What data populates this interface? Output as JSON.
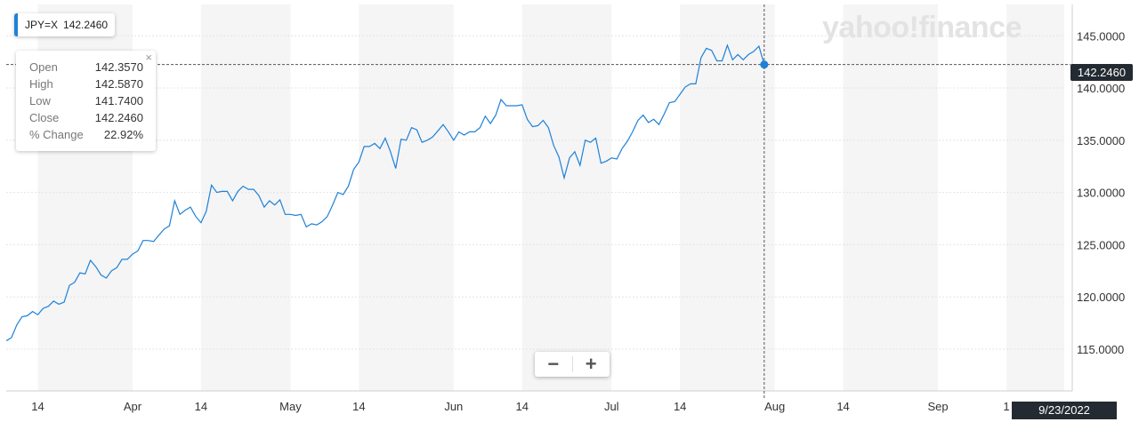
{
  "ticker": {
    "symbol": "JPY=X",
    "price": "142.2460",
    "accent": "#1d81d9"
  },
  "watermark": "yahoo!finance",
  "tooltip": {
    "rows": [
      {
        "label": "Open",
        "value": "142.3570"
      },
      {
        "label": "High",
        "value": "142.5870"
      },
      {
        "label": "Low",
        "value": "141.7400"
      },
      {
        "label": "Close",
        "value": "142.2460"
      },
      {
        "label": "% Change",
        "value": "22.92%"
      }
    ],
    "close_icon": "×"
  },
  "zoom": {
    "minus_icon": "minus-icon",
    "plus_icon": "plus-icon"
  },
  "crosshair": {
    "price_label": "142.2460",
    "date_label": "9/23/2022"
  },
  "chart_data": {
    "type": "line",
    "title": "",
    "xlabel": "",
    "ylabel": "",
    "ylim": [
      111,
      148
    ],
    "y_ticks": [
      115,
      120,
      125,
      130,
      135,
      140,
      145
    ],
    "y_tick_labels": [
      "115.0000",
      "120.0000",
      "125.0000",
      "130.0000",
      "135.0000",
      "140.0000",
      "145.0000"
    ],
    "x_range": [
      "2022-03-08",
      "2022-09-25"
    ],
    "x_ticks": [
      {
        "date": "2022-03-14",
        "label": "14"
      },
      {
        "date": "2022-04-01",
        "label": "Apr"
      },
      {
        "date": "2022-04-14",
        "label": "14"
      },
      {
        "date": "2022-05-01",
        "label": "May"
      },
      {
        "date": "2022-05-14",
        "label": "14"
      },
      {
        "date": "2022-06-01",
        "label": "Jun"
      },
      {
        "date": "2022-06-14",
        "label": "14"
      },
      {
        "date": "2022-07-01",
        "label": "Jul"
      },
      {
        "date": "2022-07-14",
        "label": "14"
      },
      {
        "date": "2022-08-01",
        "label": "Aug"
      },
      {
        "date": "2022-08-14",
        "label": "14"
      },
      {
        "date": "2022-09-01",
        "label": "Sep"
      },
      {
        "date": "2022-09-14",
        "label": "1"
      }
    ],
    "grid": true,
    "line_color": "#1d81d9",
    "current_value": 142.246,
    "series": [
      {
        "values": [
          [
            "2022-03-08",
            115.8
          ],
          [
            "2022-03-09",
            116.1
          ],
          [
            "2022-03-10",
            117.3
          ],
          [
            "2022-03-11",
            118.1
          ],
          [
            "2022-03-12",
            118.2
          ],
          [
            "2022-03-13",
            118.6
          ],
          [
            "2022-03-14",
            118.3
          ],
          [
            "2022-03-15",
            118.9
          ],
          [
            "2022-03-16",
            119.1
          ],
          [
            "2022-03-17",
            119.6
          ],
          [
            "2022-03-18",
            119.3
          ],
          [
            "2022-03-19",
            119.5
          ],
          [
            "2022-03-20",
            121.1
          ],
          [
            "2022-03-21",
            121.4
          ],
          [
            "2022-03-22",
            122.3
          ],
          [
            "2022-03-23",
            122.2
          ],
          [
            "2022-03-24",
            123.5
          ],
          [
            "2022-03-25",
            122.9
          ],
          [
            "2022-03-26",
            122.1
          ],
          [
            "2022-03-27",
            121.8
          ],
          [
            "2022-03-28",
            122.5
          ],
          [
            "2022-03-29",
            122.8
          ],
          [
            "2022-03-30",
            123.6
          ],
          [
            "2022-03-31",
            123.6
          ],
          [
            "2022-04-01",
            124.1
          ],
          [
            "2022-04-02",
            124.4
          ],
          [
            "2022-04-03",
            125.4
          ],
          [
            "2022-04-04",
            125.4
          ],
          [
            "2022-04-05",
            125.3
          ],
          [
            "2022-04-06",
            125.9
          ],
          [
            "2022-04-07",
            126.5
          ],
          [
            "2022-04-08",
            126.8
          ],
          [
            "2022-04-09",
            129.2
          ],
          [
            "2022-04-10",
            127.9
          ],
          [
            "2022-04-11",
            128.3
          ],
          [
            "2022-04-12",
            128.6
          ],
          [
            "2022-04-13",
            127.7
          ],
          [
            "2022-04-14",
            127.1
          ],
          [
            "2022-04-15",
            128.2
          ],
          [
            "2022-04-16",
            130.7
          ],
          [
            "2022-04-17",
            130.0
          ],
          [
            "2022-04-18",
            130.1
          ],
          [
            "2022-04-19",
            130.1
          ],
          [
            "2022-04-20",
            129.2
          ],
          [
            "2022-04-21",
            130.1
          ],
          [
            "2022-04-22",
            130.6
          ],
          [
            "2022-04-23",
            130.3
          ],
          [
            "2022-04-24",
            130.3
          ],
          [
            "2022-04-25",
            129.7
          ],
          [
            "2022-04-26",
            128.6
          ],
          [
            "2022-04-27",
            129.2
          ],
          [
            "2022-04-28",
            128.8
          ],
          [
            "2022-04-29",
            129.3
          ],
          [
            "2022-04-30",
            127.9
          ],
          [
            "2022-05-01",
            127.9
          ],
          [
            "2022-05-02",
            127.8
          ],
          [
            "2022-05-03",
            127.9
          ],
          [
            "2022-05-04",
            126.7
          ],
          [
            "2022-05-05",
            127.0
          ],
          [
            "2022-05-06",
            126.9
          ],
          [
            "2022-05-07",
            127.2
          ],
          [
            "2022-05-08",
            127.7
          ],
          [
            "2022-05-09",
            128.8
          ],
          [
            "2022-05-10",
            130.0
          ],
          [
            "2022-05-11",
            129.8
          ],
          [
            "2022-05-12",
            130.6
          ],
          [
            "2022-05-13",
            132.2
          ],
          [
            "2022-05-14",
            132.9
          ],
          [
            "2022-05-15",
            134.4
          ],
          [
            "2022-05-16",
            134.4
          ],
          [
            "2022-05-17",
            134.7
          ],
          [
            "2022-05-18",
            134.2
          ],
          [
            "2022-05-19",
            135.2
          ],
          [
            "2022-05-20",
            133.9
          ],
          [
            "2022-05-21",
            132.3
          ],
          [
            "2022-05-22",
            135.1
          ],
          [
            "2022-05-23",
            135.0
          ],
          [
            "2022-05-24",
            136.2
          ],
          [
            "2022-05-25",
            136.0
          ],
          [
            "2022-05-26",
            134.8
          ],
          [
            "2022-05-27",
            135.0
          ],
          [
            "2022-05-28",
            135.3
          ],
          [
            "2022-05-29",
            135.9
          ],
          [
            "2022-05-30",
            136.5
          ],
          [
            "2022-05-31",
            135.8
          ],
          [
            "2022-06-01",
            135.0
          ],
          [
            "2022-06-02",
            135.8
          ],
          [
            "2022-06-03",
            135.5
          ],
          [
            "2022-06-04",
            135.8
          ],
          [
            "2022-06-05",
            135.8
          ],
          [
            "2022-06-06",
            136.2
          ],
          [
            "2022-06-07",
            137.3
          ],
          [
            "2022-06-08",
            136.6
          ],
          [
            "2022-06-09",
            137.4
          ],
          [
            "2022-06-10",
            138.9
          ],
          [
            "2022-06-11",
            138.3
          ],
          [
            "2022-06-12",
            138.3
          ],
          [
            "2022-06-13",
            138.3
          ],
          [
            "2022-06-14",
            138.4
          ],
          [
            "2022-06-15",
            137.0
          ],
          [
            "2022-06-16",
            136.3
          ],
          [
            "2022-06-17",
            136.4
          ],
          [
            "2022-06-18",
            136.9
          ],
          [
            "2022-06-19",
            136.2
          ],
          [
            "2022-06-20",
            134.5
          ],
          [
            "2022-06-21",
            133.4
          ],
          [
            "2022-06-22",
            131.4
          ],
          [
            "2022-06-23",
            133.3
          ],
          [
            "2022-06-24",
            133.9
          ],
          [
            "2022-06-25",
            132.6
          ],
          [
            "2022-06-26",
            135.0
          ],
          [
            "2022-06-27",
            134.8
          ],
          [
            "2022-06-28",
            135.2
          ],
          [
            "2022-06-29",
            132.8
          ],
          [
            "2022-06-30",
            133.0
          ],
          [
            "2022-07-01",
            133.3
          ],
          [
            "2022-07-02",
            133.2
          ],
          [
            "2022-07-03",
            134.2
          ],
          [
            "2022-07-04",
            134.9
          ],
          [
            "2022-07-05",
            135.8
          ],
          [
            "2022-07-06",
            136.9
          ],
          [
            "2022-07-07",
            137.4
          ],
          [
            "2022-07-08",
            136.7
          ],
          [
            "2022-07-09",
            137.0
          ],
          [
            "2022-07-10",
            136.5
          ],
          [
            "2022-07-11",
            137.5
          ],
          [
            "2022-07-12",
            138.6
          ],
          [
            "2022-07-13",
            138.7
          ],
          [
            "2022-07-14",
            139.4
          ],
          [
            "2022-07-15",
            140.1
          ],
          [
            "2022-07-16",
            140.4
          ],
          [
            "2022-07-17",
            140.4
          ],
          [
            "2022-07-18",
            142.9
          ],
          [
            "2022-07-19",
            143.8
          ],
          [
            "2022-07-20",
            143.6
          ],
          [
            "2022-07-21",
            142.6
          ],
          [
            "2022-07-22",
            142.6
          ],
          [
            "2022-07-23",
            144.1
          ],
          [
            "2022-07-24",
            142.7
          ],
          [
            "2022-07-25",
            143.2
          ],
          [
            "2022-07-26",
            142.7
          ],
          [
            "2022-07-27",
            143.2
          ],
          [
            "2022-07-28",
            143.5
          ],
          [
            "2022-07-29",
            144.0
          ],
          [
            "2022-07-30",
            142.246
          ]
        ]
      }
    ]
  }
}
